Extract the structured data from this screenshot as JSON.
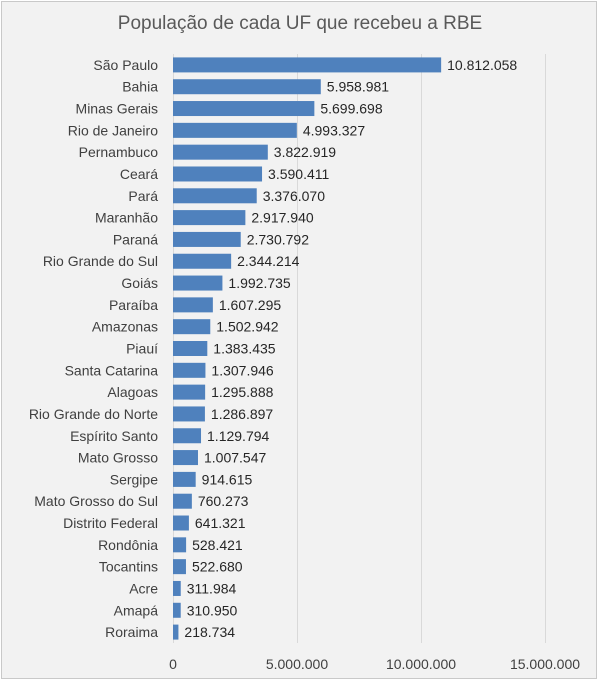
{
  "chart_data": {
    "type": "bar",
    "orientation": "horizontal",
    "title": "População de cada UF que recebeu a RBE",
    "xlabel": "",
    "ylabel": "",
    "categories": [
      "São Paulo",
      "Bahia",
      "Minas Gerais",
      "Rio de Janeiro",
      "Pernambuco",
      "Ceará",
      "Pará",
      "Maranhão",
      "Paraná",
      "Rio Grande do Sul",
      "Goiás",
      "Paraíba",
      "Amazonas",
      "Piauí",
      "Santa Catarina",
      "Alagoas",
      "Rio Grande do Norte",
      "Espírito Santo",
      "Mato Grosso",
      "Sergipe",
      "Mato Grosso do Sul",
      "Distrito Federal",
      "Rondônia",
      "Tocantins",
      "Acre",
      "Amapá",
      "Roraima"
    ],
    "values": [
      10812058,
      5958981,
      5699698,
      4993327,
      3822919,
      3590411,
      3376070,
      2917940,
      2730792,
      2344214,
      1992735,
      1607295,
      1502942,
      1383435,
      1307946,
      1295888,
      1286897,
      1129794,
      1007547,
      914615,
      760273,
      641321,
      528421,
      522680,
      311984,
      310950,
      218734
    ],
    "value_labels": [
      "10.812.058",
      "5.958.981",
      "5.699.698",
      "4.993.327",
      "3.822.919",
      "3.590.411",
      "3.376.070",
      "2.917.940",
      "2.730.792",
      "2.344.214",
      "1.992.735",
      "1.607.295",
      "1.502.942",
      "1.383.435",
      "1.307.946",
      "1.295.888",
      "1.286.897",
      "1.129.794",
      "1.007.547",
      "914.615",
      "760.273",
      "641.321",
      "528.421",
      "522.680",
      "311.984",
      "310.950",
      "218.734"
    ],
    "xlim": [
      0,
      15000000
    ],
    "x_ticks": [
      0,
      5000000,
      10000000,
      15000000
    ],
    "x_tick_labels": [
      "0",
      "5.000.000",
      "10.000.000",
      "15.000.000"
    ],
    "grid": "vertical",
    "legend": "none",
    "bar_color": "#4f81bd",
    "background_color": "#f2f2f2",
    "gridline_color": "#d9d9d9"
  }
}
